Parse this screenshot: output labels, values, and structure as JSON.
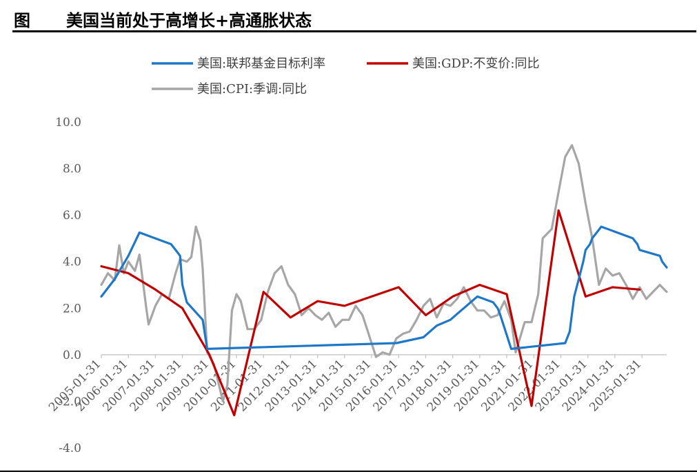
{
  "figure": {
    "label": "图",
    "title": "美国当前处于高增长+高通胀状态"
  },
  "chart_data": {
    "type": "line",
    "title": "美国当前处于高增长+高通胀状态",
    "xlabel": "",
    "ylabel": "",
    "ylim": [
      -4.0,
      10.0
    ],
    "yticks": [
      "10.0",
      "8.0",
      "6.0",
      "4.0",
      "2.0",
      "0.0",
      "-2.0",
      "-4.0"
    ],
    "xlim": [
      "2005-01-31",
      "2025-12-31"
    ],
    "xticks": [
      "2005-01-31",
      "2006-01-31",
      "2007-01-31",
      "2008-01-31",
      "2009-01-31",
      "2010-01-31",
      "2011-01-31",
      "2012-01-31",
      "2013-01-31",
      "2014-01-31",
      "2015-01-31",
      "2016-01-31",
      "2017-01-31",
      "2018-01-31",
      "2019-01-31",
      "2020-01-31",
      "2021-01-31",
      "2022-01-31",
      "2023-01-31",
      "2024-01-31",
      "2025-01-31"
    ],
    "grid": false,
    "legend_position": "top",
    "series": [
      {
        "name": "美国:联邦基金目标利率",
        "color": "#1F77C8",
        "points": [
          [
            "2005-01-31",
            2.5
          ],
          [
            "2005-07-31",
            3.25
          ],
          [
            "2006-01-31",
            4.25
          ],
          [
            "2006-06-30",
            5.25
          ],
          [
            "2007-08-31",
            4.75
          ],
          [
            "2007-10-31",
            4.5
          ],
          [
            "2007-12-31",
            4.25
          ],
          [
            "2008-01-31",
            3.0
          ],
          [
            "2008-03-31",
            2.25
          ],
          [
            "2008-10-31",
            1.5
          ],
          [
            "2008-12-31",
            0.25
          ],
          [
            "2015-12-31",
            0.5
          ],
          [
            "2016-12-31",
            0.75
          ],
          [
            "2017-03-31",
            1.0
          ],
          [
            "2017-06-30",
            1.25
          ],
          [
            "2017-12-31",
            1.5
          ],
          [
            "2018-03-31",
            1.75
          ],
          [
            "2018-06-30",
            2.0
          ],
          [
            "2018-09-30",
            2.25
          ],
          [
            "2018-12-31",
            2.5
          ],
          [
            "2019-07-31",
            2.25
          ],
          [
            "2019-09-30",
            2.0
          ],
          [
            "2019-10-31",
            1.75
          ],
          [
            "2020-03-31",
            0.25
          ],
          [
            "2022-03-31",
            0.5
          ],
          [
            "2022-05-31",
            1.0
          ],
          [
            "2022-06-30",
            1.75
          ],
          [
            "2022-07-31",
            2.5
          ],
          [
            "2022-09-30",
            3.25
          ],
          [
            "2022-11-30",
            4.0
          ],
          [
            "2022-12-31",
            4.5
          ],
          [
            "2023-02-28",
            4.75
          ],
          [
            "2023-03-31",
            5.0
          ],
          [
            "2023-05-31",
            5.25
          ],
          [
            "2023-07-31",
            5.5
          ],
          [
            "2024-09-30",
            5.0
          ],
          [
            "2024-11-30",
            4.75
          ],
          [
            "2024-12-31",
            4.5
          ],
          [
            "2025-09-30",
            4.25
          ],
          [
            "2025-10-31",
            4.0
          ],
          [
            "2025-12-31",
            3.75
          ]
        ]
      },
      {
        "name": "美国:GDP:不变价:同比",
        "color": "#C00000",
        "points": [
          [
            "2005-01-31",
            3.8
          ],
          [
            "2006-01-31",
            3.5
          ],
          [
            "2007-01-31",
            2.8
          ],
          [
            "2008-01-31",
            2.0
          ],
          [
            "2009-01-31",
            0.0
          ],
          [
            "2009-12-31",
            -2.6
          ],
          [
            "2011-01-31",
            2.7
          ],
          [
            "2012-01-31",
            1.6
          ],
          [
            "2013-01-31",
            2.3
          ],
          [
            "2014-01-31",
            2.1
          ],
          [
            "2015-01-31",
            2.5
          ],
          [
            "2016-01-31",
            2.9
          ],
          [
            "2017-01-31",
            1.7
          ],
          [
            "2018-01-31",
            2.5
          ],
          [
            "2019-01-31",
            3.0
          ],
          [
            "2020-01-31",
            2.6
          ],
          [
            "2020-12-31",
            -2.2
          ],
          [
            "2021-12-31",
            6.2
          ],
          [
            "2022-12-31",
            2.5
          ],
          [
            "2023-12-31",
            2.9
          ],
          [
            "2024-12-31",
            2.8
          ]
        ]
      },
      {
        "name": "美国:CPI:季调:同比",
        "color": "#A6A6A6",
        "points": [
          [
            "2005-01-31",
            3.0
          ],
          [
            "2005-04-30",
            3.5
          ],
          [
            "2005-07-31",
            3.2
          ],
          [
            "2005-09-30",
            4.7
          ],
          [
            "2005-11-30",
            3.5
          ],
          [
            "2006-01-31",
            4.0
          ],
          [
            "2006-04-30",
            3.6
          ],
          [
            "2006-06-30",
            4.3
          ],
          [
            "2006-09-30",
            2.0
          ],
          [
            "2006-10-31",
            1.3
          ],
          [
            "2007-01-31",
            2.1
          ],
          [
            "2007-04-30",
            2.6
          ],
          [
            "2007-07-31",
            2.4
          ],
          [
            "2007-10-31",
            3.5
          ],
          [
            "2007-12-31",
            4.1
          ],
          [
            "2008-03-31",
            4.0
          ],
          [
            "2008-05-31",
            4.2
          ],
          [
            "2008-07-31",
            5.5
          ],
          [
            "2008-09-30",
            4.9
          ],
          [
            "2008-10-31",
            3.7
          ],
          [
            "2008-12-31",
            0.1
          ],
          [
            "2009-03-31",
            -0.4
          ],
          [
            "2009-07-31",
            -2.0
          ],
          [
            "2009-09-30",
            -1.3
          ],
          [
            "2009-11-30",
            1.9
          ],
          [
            "2010-01-31",
            2.6
          ],
          [
            "2010-03-31",
            2.3
          ],
          [
            "2010-06-30",
            1.1
          ],
          [
            "2010-09-30",
            1.1
          ],
          [
            "2010-12-31",
            1.5
          ],
          [
            "2011-03-31",
            2.7
          ],
          [
            "2011-06-30",
            3.5
          ],
          [
            "2011-09-30",
            3.8
          ],
          [
            "2011-12-31",
            3.0
          ],
          [
            "2012-03-31",
            2.6
          ],
          [
            "2012-06-30",
            1.7
          ],
          [
            "2012-09-30",
            2.0
          ],
          [
            "2012-12-31",
            1.7
          ],
          [
            "2013-03-31",
            1.5
          ],
          [
            "2013-06-30",
            1.8
          ],
          [
            "2013-09-30",
            1.2
          ],
          [
            "2013-12-31",
            1.5
          ],
          [
            "2014-03-31",
            1.5
          ],
          [
            "2014-06-30",
            2.1
          ],
          [
            "2014-09-30",
            1.7
          ],
          [
            "2014-12-31",
            0.8
          ],
          [
            "2015-03-31",
            -0.1
          ],
          [
            "2015-06-30",
            0.1
          ],
          [
            "2015-09-30",
            0.0
          ],
          [
            "2015-12-31",
            0.7
          ],
          [
            "2016-03-31",
            0.9
          ],
          [
            "2016-06-30",
            1.0
          ],
          [
            "2016-09-30",
            1.5
          ],
          [
            "2016-12-31",
            2.1
          ],
          [
            "2017-03-31",
            2.4
          ],
          [
            "2017-06-30",
            1.6
          ],
          [
            "2017-09-30",
            2.2
          ],
          [
            "2017-12-31",
            2.1
          ],
          [
            "2018-03-31",
            2.4
          ],
          [
            "2018-06-30",
            2.9
          ],
          [
            "2018-09-30",
            2.3
          ],
          [
            "2018-12-31",
            1.9
          ],
          [
            "2019-03-31",
            1.9
          ],
          [
            "2019-06-30",
            1.6
          ],
          [
            "2019-09-30",
            1.7
          ],
          [
            "2019-12-31",
            2.3
          ],
          [
            "2020-03-31",
            1.5
          ],
          [
            "2020-05-31",
            0.1
          ],
          [
            "2020-09-30",
            1.4
          ],
          [
            "2020-12-31",
            1.4
          ],
          [
            "2021-03-31",
            2.6
          ],
          [
            "2021-05-31",
            5.0
          ],
          [
            "2021-09-30",
            5.4
          ],
          [
            "2021-12-31",
            7.0
          ],
          [
            "2022-03-31",
            8.5
          ],
          [
            "2022-06-30",
            9.0
          ],
          [
            "2022-09-30",
            8.2
          ],
          [
            "2022-12-31",
            6.5
          ],
          [
            "2023-03-31",
            5.0
          ],
          [
            "2023-06-30",
            3.0
          ],
          [
            "2023-09-30",
            3.7
          ],
          [
            "2023-12-31",
            3.4
          ],
          [
            "2024-03-31",
            3.5
          ],
          [
            "2024-06-30",
            3.0
          ],
          [
            "2024-09-30",
            2.4
          ],
          [
            "2024-12-31",
            2.9
          ],
          [
            "2025-03-31",
            2.4
          ],
          [
            "2025-06-30",
            2.7
          ],
          [
            "2025-09-30",
            3.0
          ],
          [
            "2025-12-31",
            2.7
          ]
        ]
      }
    ]
  }
}
